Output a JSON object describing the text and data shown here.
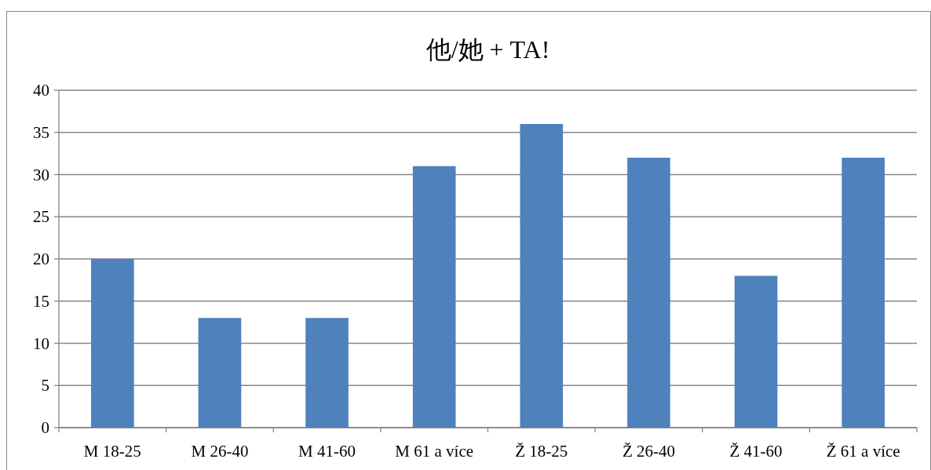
{
  "chart_data": {
    "type": "bar",
    "title": "他/她 + TA!",
    "categories": [
      "M 18-25",
      "M 26-40",
      "M 41-60",
      "M 61 a více",
      "Ž 18-25",
      "Ž 26-40",
      "Ž 41-60",
      "Ž 61 a více"
    ],
    "values": [
      20,
      13,
      13,
      31,
      36,
      32,
      18,
      32
    ],
    "color": "#4f81bd",
    "ylim": [
      0,
      40
    ],
    "yticks": [
      0,
      5,
      10,
      15,
      20,
      25,
      30,
      35,
      40
    ],
    "grid": "y"
  }
}
